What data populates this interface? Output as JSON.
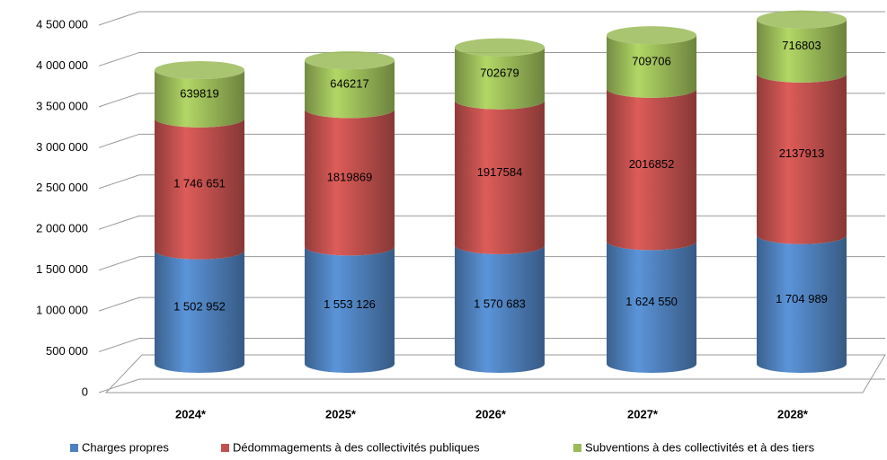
{
  "chart_data": {
    "type": "bar",
    "stacked": true,
    "style": "3d-cylinder",
    "categories": [
      "2024*",
      "2025*",
      "2026*",
      "2027*",
      "2028*"
    ],
    "series": [
      {
        "name": "Charges propres",
        "color": "#4f81bd",
        "values": [
          1502952,
          1553126,
          1570683,
          1624550,
          1704989
        ],
        "value_labels": [
          "1 502 952",
          "1 553 126",
          "1 570 683",
          "1 624 550",
          "1 704 989"
        ]
      },
      {
        "name": "Dédommagements à des collectivités publiques",
        "color": "#c0504d",
        "values": [
          1746651,
          1819869,
          1917584,
          2016852,
          2137913
        ],
        "value_labels": [
          "1 746 651",
          "1819869",
          "1917584",
          "2016852",
          "2137913"
        ]
      },
      {
        "name": "Subventions à des collectivités et à des tiers",
        "color": "#9bbb59",
        "values": [
          639819,
          646217,
          702679,
          709706,
          716803
        ]
      }
    ],
    "ylim": [
      0,
      4500000
    ],
    "yticks": [
      0,
      {
        "value": 500000,
        "label": "500 000"
      },
      {
        "value": 1000000,
        "label": "1 000 000"
      },
      {
        "value": 1500000,
        "label": "1 500 000"
      },
      {
        "value": 2000000,
        "label": "2 000 000"
      },
      {
        "value": 2500000,
        "label": "2 500 000"
      },
      {
        "value": 3000000,
        "label": "3 000 000"
      },
      {
        "value": 3500000,
        "label": "3 500 000"
      },
      {
        "value": 4000000,
        "label": "4 000 000"
      },
      {
        "value": 4500000,
        "label": "4 500 000"
      }
    ],
    "grid": true,
    "legend": "bottom"
  }
}
